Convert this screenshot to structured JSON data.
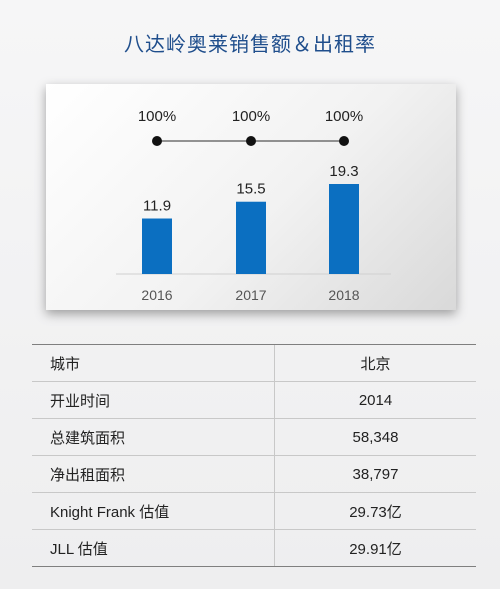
{
  "title": "八达岭奥莱销售额＆出租率",
  "chart_data": {
    "type": "bar",
    "categories": [
      "2016",
      "2017",
      "2018"
    ],
    "values": [
      11.9,
      15.5,
      19.3
    ],
    "value_labels": [
      "11.9",
      "15.5",
      "19.3"
    ],
    "occupancy_labels": [
      "100%",
      "100%",
      "100%"
    ],
    "ylim": [
      0,
      19.3
    ],
    "bar_color": "#0b6fc1",
    "line_color": "#555555",
    "dot_color": "#111111"
  },
  "table": {
    "rows": [
      {
        "key": "城市",
        "value": "北京"
      },
      {
        "key": "开业时间",
        "value": "2014"
      },
      {
        "key": "总建筑面积",
        "value": "58,348"
      },
      {
        "key": "净出租面积",
        "value": "38,797"
      },
      {
        "key": "Knight Frank 估值",
        "value": "29.73亿"
      },
      {
        "key": "JLL 估值",
        "value": "29.91亿"
      }
    ]
  }
}
